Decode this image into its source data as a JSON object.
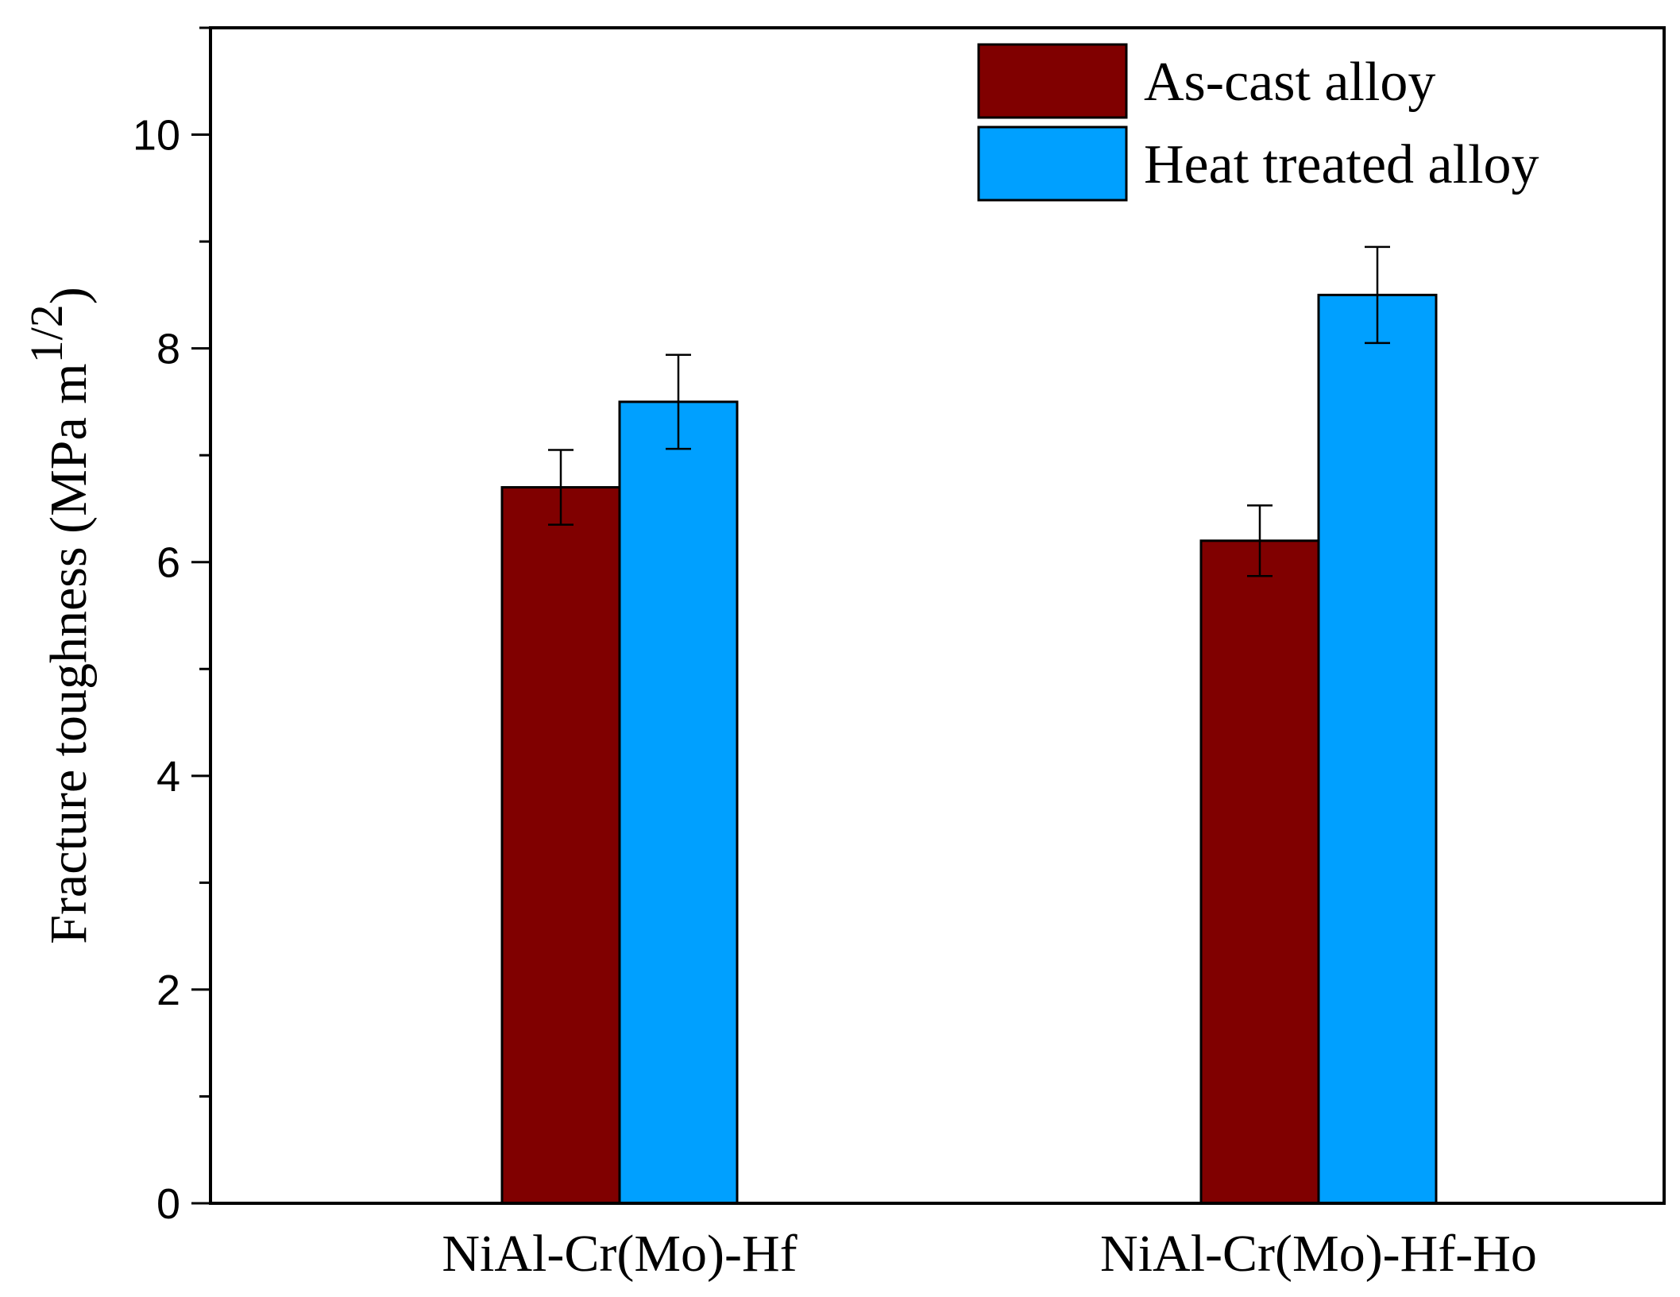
{
  "chart_data": {
    "type": "bar",
    "title": "",
    "xlabel": "",
    "ylabel": "Fracture toughness (MPa m",
    "ylabel_superscript": "1/2",
    "ylabel_close": ")",
    "categories": [
      "NiAl-Cr(Mo)-Hf",
      "NiAl-Cr(Mo)-Hf-Ho"
    ],
    "series": [
      {
        "name": "As-cast alloy",
        "color": "#800000",
        "values": [
          6.7,
          6.2
        ],
        "errors": [
          0.35,
          0.33
        ]
      },
      {
        "name": "Heat treated alloy",
        "color": "#00A0FF",
        "values": [
          7.5,
          8.5
        ],
        "errors": [
          0.44,
          0.45
        ]
      }
    ],
    "ylim": [
      0,
      11
    ],
    "yticks": [
      0,
      2,
      4,
      6,
      8,
      10
    ],
    "yticklabels": [
      "0",
      "2",
      "4",
      "6",
      "8",
      "10"
    ],
    "legend_position": "top-right",
    "grid": false
  }
}
